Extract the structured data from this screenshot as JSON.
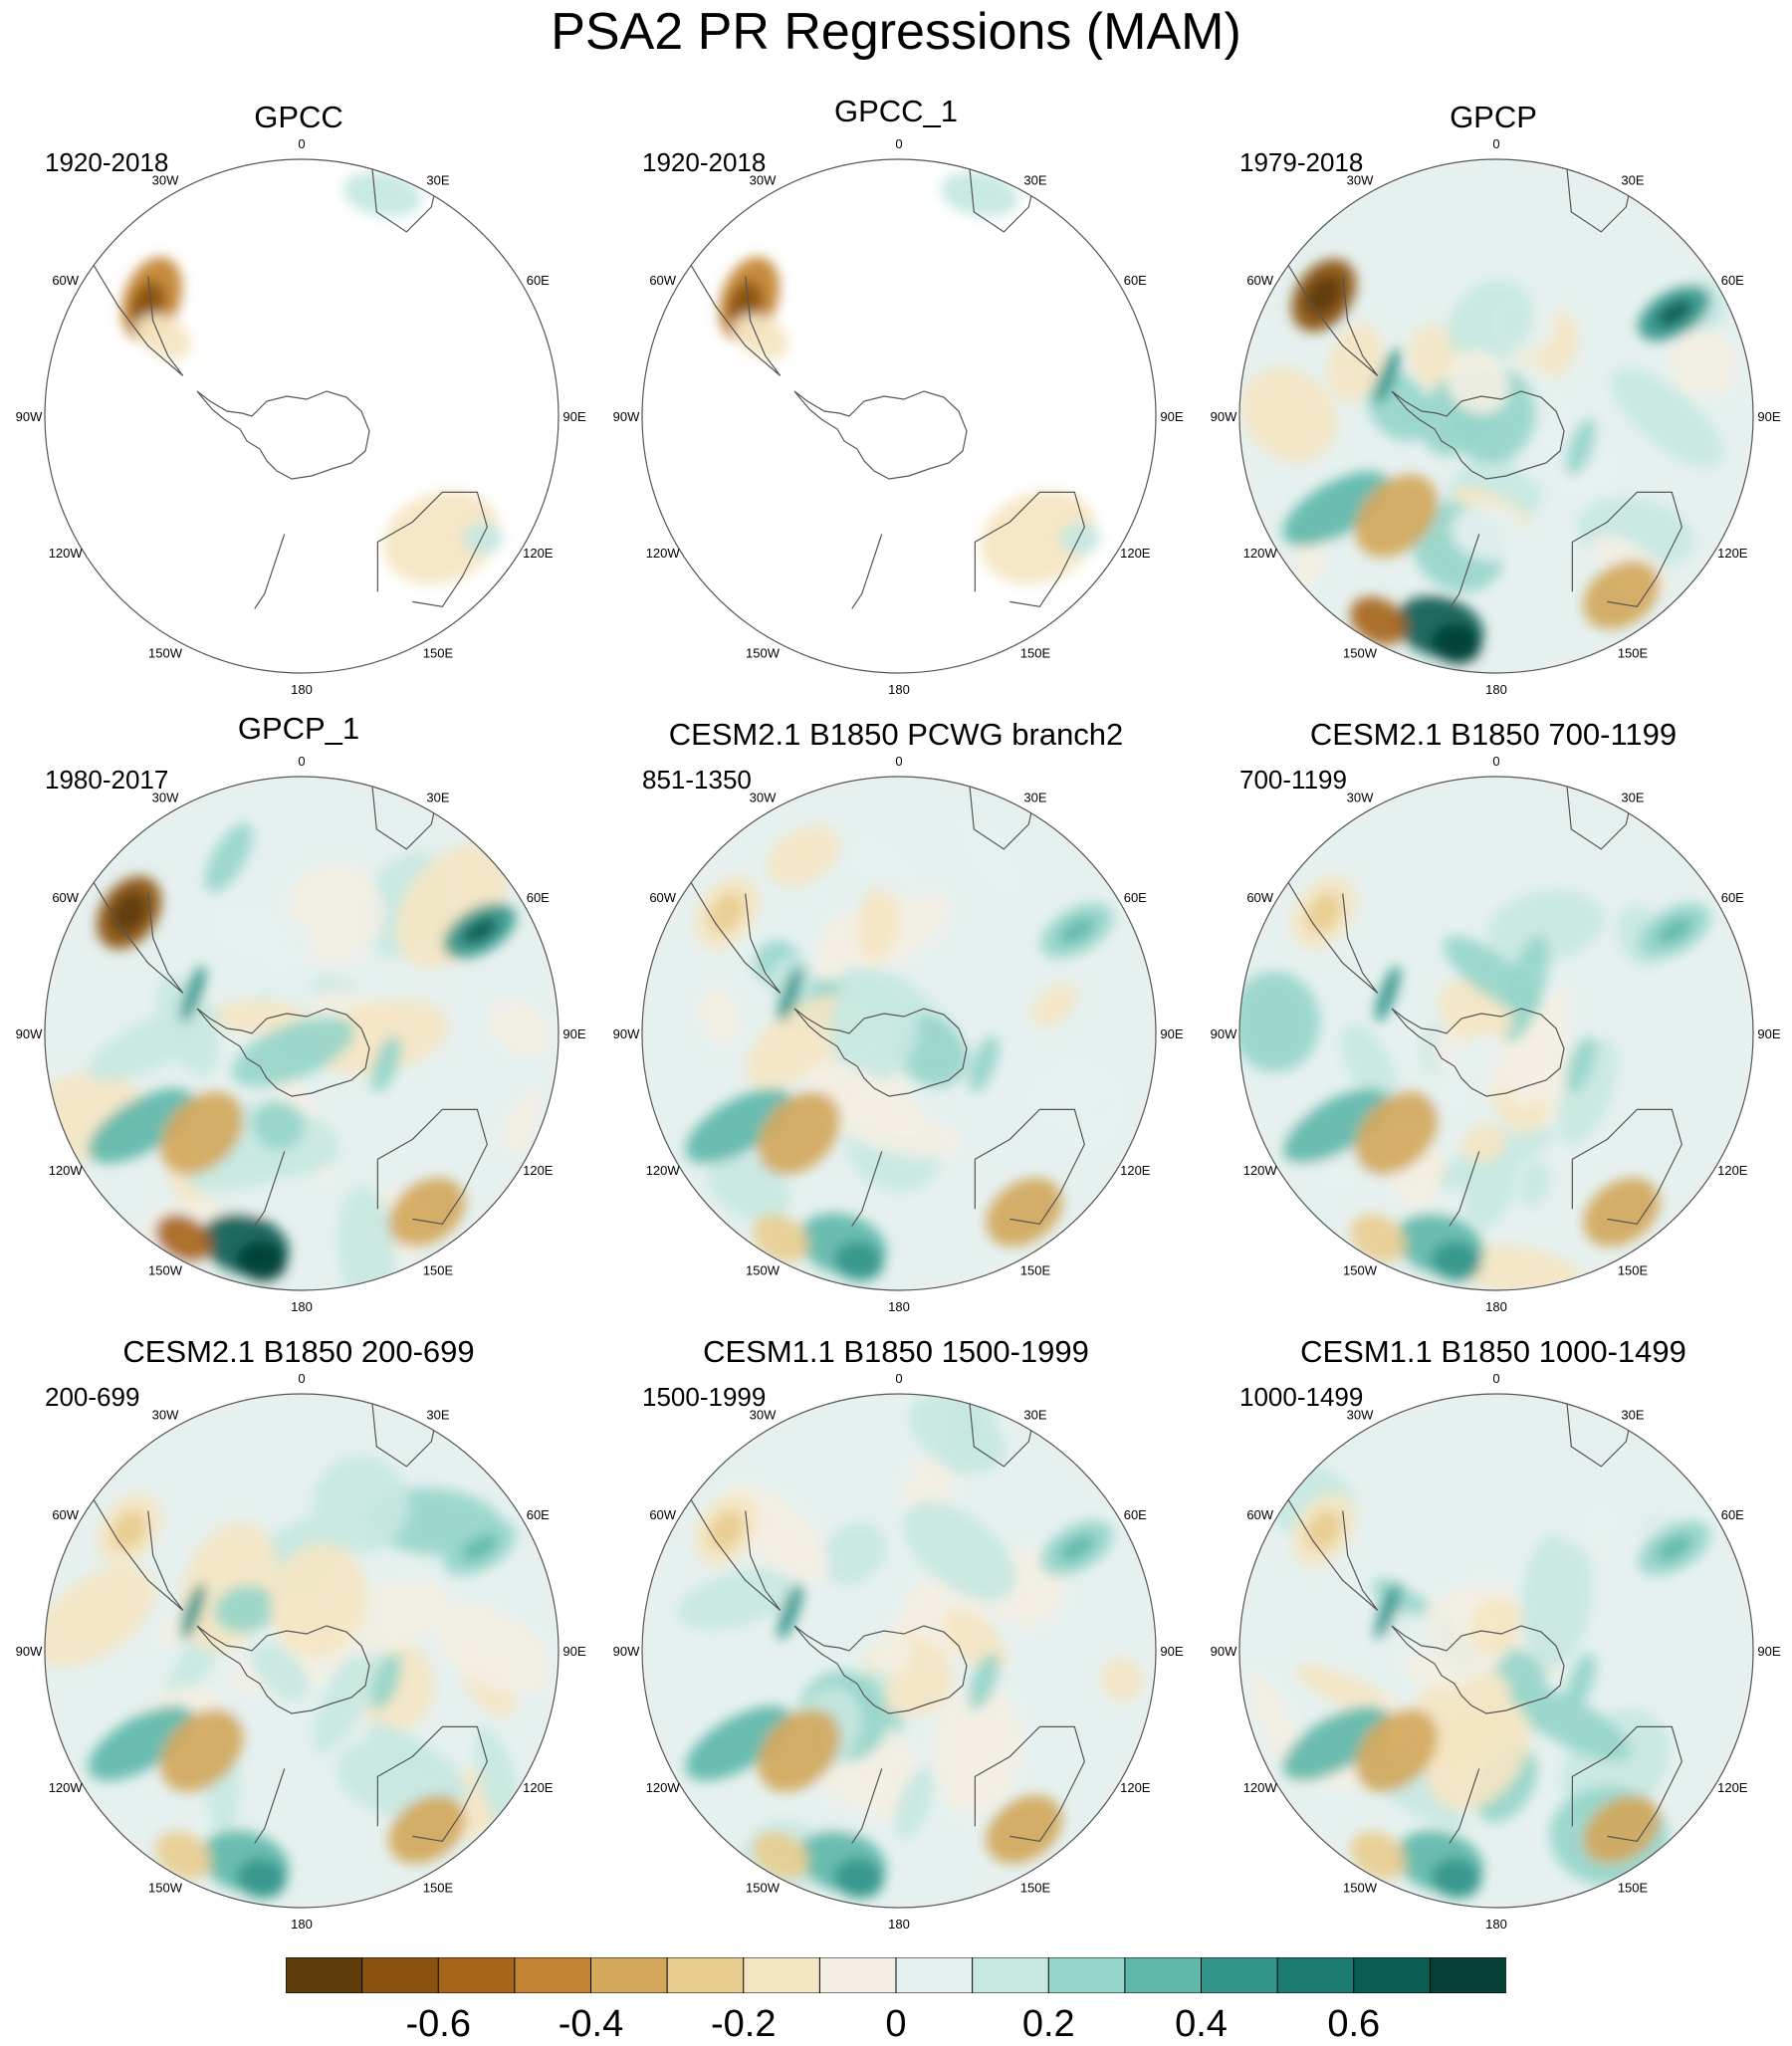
{
  "title": "PSA2 PR Regressions (MAM)",
  "panels": [
    {
      "title": "GPCC",
      "period": "1920-2018",
      "coverage": "land"
    },
    {
      "title": "GPCC_1",
      "period": "1920-2018",
      "coverage": "land"
    },
    {
      "title": "GPCP",
      "period": "1979-2018",
      "coverage": "global"
    },
    {
      "title": "GPCP_1",
      "period": "1980-2017",
      "coverage": "global"
    },
    {
      "title": "CESM2.1 B1850 PCWG branch2",
      "period": "851-1350",
      "coverage": "global"
    },
    {
      "title": "CESM2.1 B1850 700-1199",
      "period": "700-1199",
      "coverage": "global"
    },
    {
      "title": "CESM2.1 B1850 200-699",
      "period": "200-699",
      "coverage": "global"
    },
    {
      "title": "CESM1.1 B1850 1500-1999",
      "period": "1500-1999",
      "coverage": "global"
    },
    {
      "title": "CESM1.1 B1850 1000-1499",
      "period": "1000-1499",
      "coverage": "global"
    }
  ],
  "lon_labels": [
    "0",
    "30E",
    "60E",
    "90E",
    "120E",
    "150E",
    "180",
    "150W",
    "120W",
    "90W",
    "60W",
    "30W"
  ],
  "colorbar": {
    "colors": [
      "#5e3c0c",
      "#8a520f",
      "#a8661c",
      "#c38533",
      "#d3a85c",
      "#e8cd90",
      "#f5e6c3",
      "#f4efe4",
      "#e6f1ef",
      "#c6e8e1",
      "#96d5c9",
      "#5fb8aa",
      "#34978c",
      "#1c7b70",
      "#0a5d52",
      "#053f35"
    ],
    "labels": [
      "-0.6",
      "-0.4",
      "-0.2",
      "0",
      "0.2",
      "0.4",
      "0.6"
    ],
    "label_edge_index": [
      1,
      3,
      5,
      7,
      9,
      11,
      13
    ]
  }
}
